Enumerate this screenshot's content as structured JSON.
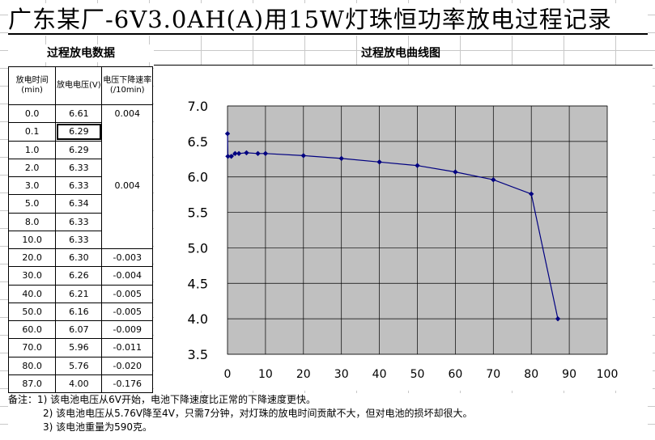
{
  "title": "广东某厂-6V3.0AH(A)用15W灯珠恒功率放电过程记录",
  "table": {
    "heading": "过程放电数据",
    "col1": "放电时间(min)",
    "col2": "放电电压(V)",
    "col3": "电压下降速率(/10min)",
    "rows": [
      {
        "t": "0.0",
        "v": "6.61"
      },
      {
        "t": "0.1",
        "v": "6.29"
      },
      {
        "t": "1.0",
        "v": "6.29"
      },
      {
        "t": "2.0",
        "v": "6.33"
      },
      {
        "t": "3.0",
        "v": "6.33"
      },
      {
        "t": "5.0",
        "v": "6.34"
      },
      {
        "t": "8.0",
        "v": "6.33"
      },
      {
        "t": "10.0",
        "v": "6.33"
      },
      {
        "t": "20.0",
        "v": "6.30",
        "r": "-0.003"
      },
      {
        "t": "30.0",
        "v": "6.26",
        "r": "-0.004"
      },
      {
        "t": "40.0",
        "v": "6.21",
        "r": "-0.005"
      },
      {
        "t": "50.0",
        "v": "6.16",
        "r": "-0.005"
      },
      {
        "t": "60.0",
        "v": "6.07",
        "r": "-0.009"
      },
      {
        "t": "70.0",
        "v": "5.96",
        "r": "-0.011"
      },
      {
        "t": "80.0",
        "v": "5.76",
        "r": "-0.020"
      },
      {
        "t": "87.0",
        "v": "4.00",
        "r": "-0.176"
      }
    ],
    "merged_rate": "0.004"
  },
  "chart_data": {
    "type": "line",
    "title": "过程放电曲线图",
    "x": [
      0,
      0.1,
      1,
      2,
      3,
      5,
      8,
      10,
      20,
      30,
      40,
      50,
      60,
      70,
      80,
      87
    ],
    "series": [
      {
        "values": [
          6.61,
          6.29,
          6.29,
          6.33,
          6.33,
          6.34,
          6.33,
          6.33,
          6.3,
          6.26,
          6.21,
          6.16,
          6.07,
          5.96,
          5.76,
          4.0
        ]
      }
    ],
    "xlim": [
      0,
      100
    ],
    "ylim": [
      3.5,
      7.0
    ],
    "xticks": [
      0,
      10,
      20,
      30,
      40,
      50,
      60,
      70,
      80,
      90,
      100
    ],
    "yticks": [
      3.5,
      4.0,
      4.5,
      5.0,
      5.5,
      6.0,
      6.5,
      7.0
    ],
    "ytick_labels": [
      "3.5",
      "4.0",
      "4.5",
      "5.0",
      "5.5",
      "6.0",
      "6.5",
      "7.0"
    ],
    "grid": true,
    "plot_background": "#c0c0c0",
    "line_color": "#000080"
  },
  "notes": {
    "n1": "备注：1) 该电池电压从6V开始，电池下降速度比正常的下降速度更快。",
    "n2": "2) 该电池电压从5.76V降至4V，只需7分钟，对灯珠的放电时间贡献不大，但对电池的损坏却很大。",
    "n3": "3) 该电池重量为590克。"
  }
}
